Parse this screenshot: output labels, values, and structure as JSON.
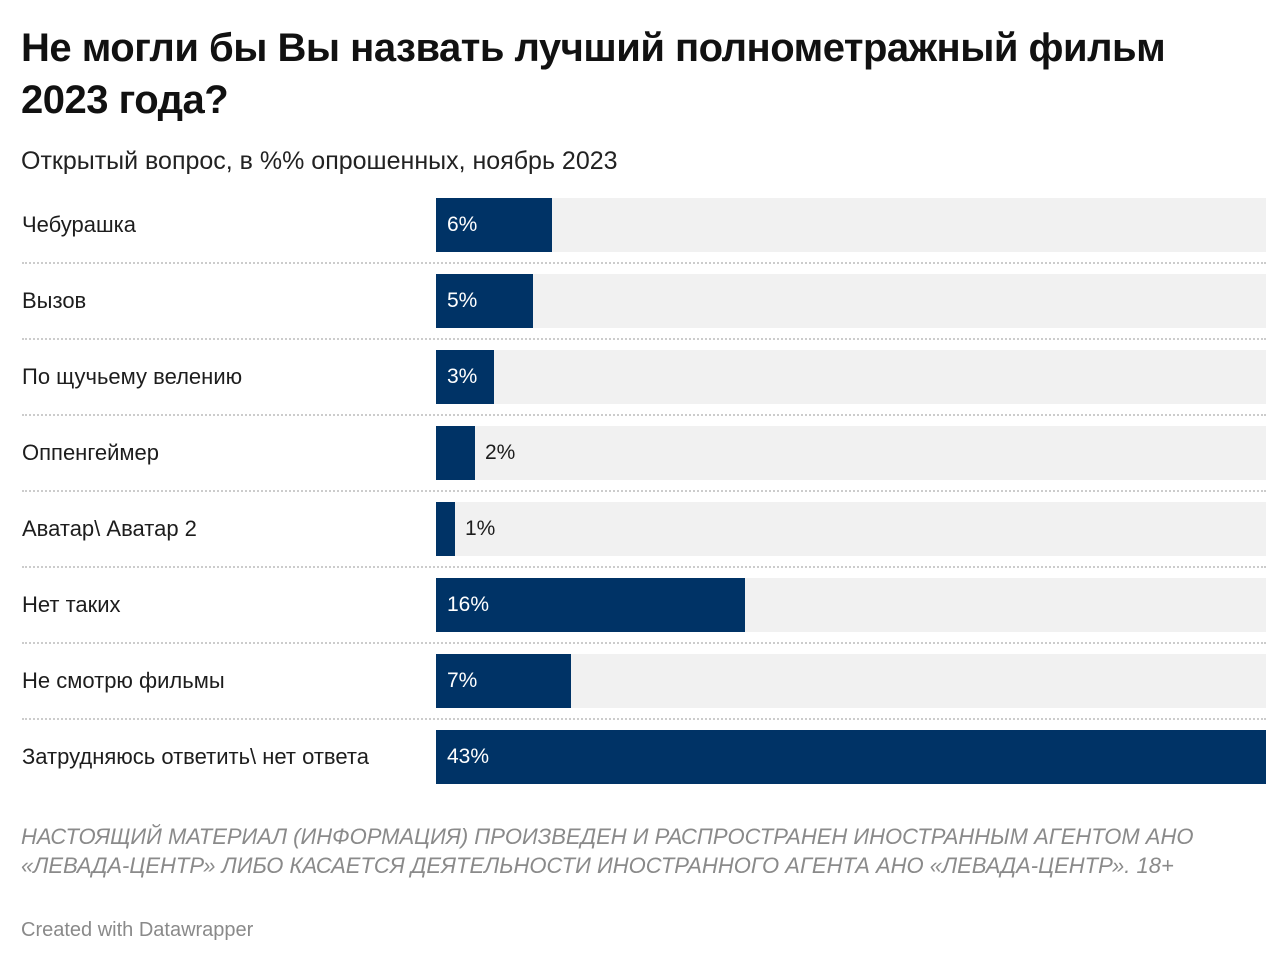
{
  "title": "Не могли бы Вы назвать лучший полнометражный фильм 2023 года?",
  "subtitle": "Открытый вопрос, в %% опрошенных, ноябрь 2023",
  "notes": "НАСТОЯЩИЙ МАТЕРИАЛ (ИНФОРМАЦИЯ) ПРОИЗВЕДЕН И РАСПРОСТРАНЕН ИНОСТРАННЫМ АГЕНТОМ АНО «ЛЕВАДА-ЦЕНТР» ЛИБО КАСАЕТСЯ ДЕЯТЕЛЬНОСТИ ИНОСТРАННОГО АГЕНТА АНО «ЛЕВАДА-ЦЕНТР». 18+",
  "byline": "Created with Datawrapper",
  "colors": {
    "bar": "#003366",
    "track": "#f1f1f1"
  },
  "chart_data": {
    "type": "bar",
    "orientation": "horizontal",
    "title": "Не могли бы Вы назвать лучший полнометражный фильм 2023 года?",
    "subtitle": "Открытый вопрос, в %% опрошенных, ноябрь 2023",
    "categories": [
      "Чебурашка",
      "Вызов",
      "По щучьему велению",
      "Оппенгеймер",
      "Аватар\\ Аватар 2",
      "Нет таких",
      "Не смотрю фильмы",
      "Затрудняюсь ответить\\ нет ответа"
    ],
    "values": [
      6,
      5,
      3,
      2,
      1,
      16,
      7,
      43
    ],
    "value_labels": [
      "6%",
      "5%",
      "3%",
      "2%",
      "1%",
      "16%",
      "7%",
      "43%"
    ],
    "xlim": [
      0,
      43
    ],
    "grid": false
  }
}
